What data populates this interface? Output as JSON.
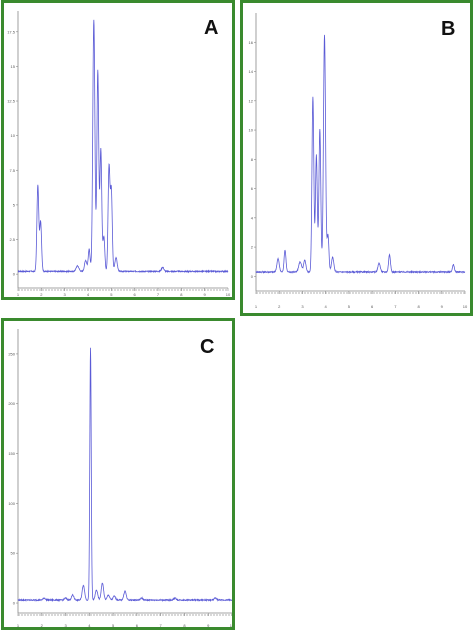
{
  "colors": {
    "trace": "#5b5bd6",
    "frame": "#3a8a2e",
    "axis": "#888888",
    "baseline": "#666666"
  },
  "chart_data": [
    {
      "type": "line",
      "panel_label": "A",
      "xlim": [
        1,
        10
      ],
      "x_ticks": [
        "1",
        "2",
        "3",
        "4",
        "5",
        "6",
        "7",
        "8",
        "9",
        "10"
      ],
      "ylim": [
        -1,
        19
      ],
      "y_ticks": [
        {
          "v": 0,
          "label": "0"
        },
        {
          "v": 2.5,
          "label": "2.5"
        },
        {
          "v": 5,
          "label": "5"
        },
        {
          "v": 7.5,
          "label": "7.5"
        },
        {
          "v": 10,
          "label": "10"
        },
        {
          "v": 12.5,
          "label": "12.5"
        },
        {
          "v": 15,
          "label": "15"
        },
        {
          "v": 17.5,
          "label": "17.5"
        }
      ],
      "baseline": 0.2,
      "peaks": [
        {
          "x": 1.85,
          "h": 6.2,
          "w": 0.04
        },
        {
          "x": 1.97,
          "h": 3.6,
          "w": 0.04
        },
        {
          "x": 3.55,
          "h": 0.4,
          "w": 0.06
        },
        {
          "x": 3.9,
          "h": 0.8,
          "w": 0.05
        },
        {
          "x": 4.05,
          "h": 1.6,
          "w": 0.04
        },
        {
          "x": 4.25,
          "h": 18.2,
          "w": 0.045
        },
        {
          "x": 4.42,
          "h": 14.5,
          "w": 0.04
        },
        {
          "x": 4.55,
          "h": 8.8,
          "w": 0.04
        },
        {
          "x": 4.68,
          "h": 2.5,
          "w": 0.04
        },
        {
          "x": 4.9,
          "h": 7.5,
          "w": 0.04
        },
        {
          "x": 5.0,
          "h": 5.8,
          "w": 0.04
        },
        {
          "x": 5.2,
          "h": 1.0,
          "w": 0.05
        },
        {
          "x": 7.2,
          "h": 0.3,
          "w": 0.05
        }
      ]
    },
    {
      "type": "line",
      "panel_label": "B",
      "xlim": [
        1,
        10
      ],
      "x_ticks": [
        "1",
        "2",
        "3",
        "4",
        "5",
        "6",
        "7",
        "8",
        "9",
        "10"
      ],
      "ylim": [
        -1,
        18
      ],
      "y_ticks": [
        {
          "v": 0,
          "label": "0"
        },
        {
          "v": 2,
          "label": "2"
        },
        {
          "v": 4,
          "label": "4"
        },
        {
          "v": 6,
          "label": "6"
        },
        {
          "v": 8,
          "label": "8"
        },
        {
          "v": 10,
          "label": "10"
        },
        {
          "v": 12,
          "label": "12"
        },
        {
          "v": 14,
          "label": "14"
        },
        {
          "v": 16,
          "label": "16"
        }
      ],
      "baseline": 0.3,
      "peaks": [
        {
          "x": 1.95,
          "h": 0.9,
          "w": 0.05
        },
        {
          "x": 2.25,
          "h": 1.5,
          "w": 0.04
        },
        {
          "x": 2.9,
          "h": 0.7,
          "w": 0.06
        },
        {
          "x": 3.1,
          "h": 0.8,
          "w": 0.05
        },
        {
          "x": 3.45,
          "h": 12.0,
          "w": 0.04
        },
        {
          "x": 3.6,
          "h": 8.0,
          "w": 0.04
        },
        {
          "x": 3.75,
          "h": 9.8,
          "w": 0.04
        },
        {
          "x": 3.95,
          "h": 16.2,
          "w": 0.045
        },
        {
          "x": 4.1,
          "h": 2.5,
          "w": 0.04
        },
        {
          "x": 4.3,
          "h": 1.0,
          "w": 0.05
        },
        {
          "x": 6.3,
          "h": 0.6,
          "w": 0.05
        },
        {
          "x": 6.75,
          "h": 1.2,
          "w": 0.04
        },
        {
          "x": 9.5,
          "h": 0.5,
          "w": 0.04
        }
      ]
    },
    {
      "type": "line",
      "panel_label": "C",
      "xlim": [
        1,
        10
      ],
      "x_ticks": [
        "1",
        "2",
        "3",
        "4",
        "5",
        "6",
        "7",
        "8",
        "9",
        "10"
      ],
      "ylim": [
        -10,
        275
      ],
      "y_ticks": [
        {
          "v": 0,
          "label": "0"
        },
        {
          "v": 50,
          "label": "50"
        },
        {
          "v": 100,
          "label": "100"
        },
        {
          "v": 150,
          "label": "150"
        },
        {
          "v": 200,
          "label": "200"
        },
        {
          "v": 250,
          "label": "250"
        }
      ],
      "baseline": 3,
      "peaks": [
        {
          "x": 2.1,
          "h": 2,
          "w": 0.05
        },
        {
          "x": 3.0,
          "h": 2,
          "w": 0.05
        },
        {
          "x": 3.3,
          "h": 5,
          "w": 0.05
        },
        {
          "x": 3.75,
          "h": 15,
          "w": 0.05
        },
        {
          "x": 4.05,
          "h": 253,
          "w": 0.03
        },
        {
          "x": 4.3,
          "h": 10,
          "w": 0.05
        },
        {
          "x": 4.55,
          "h": 17,
          "w": 0.05
        },
        {
          "x": 4.8,
          "h": 5,
          "w": 0.05
        },
        {
          "x": 5.05,
          "h": 4,
          "w": 0.05
        },
        {
          "x": 5.5,
          "h": 9,
          "w": 0.05
        },
        {
          "x": 6.2,
          "h": 2,
          "w": 0.05
        },
        {
          "x": 7.6,
          "h": 2,
          "w": 0.05
        },
        {
          "x": 9.3,
          "h": 2,
          "w": 0.05
        }
      ]
    }
  ]
}
